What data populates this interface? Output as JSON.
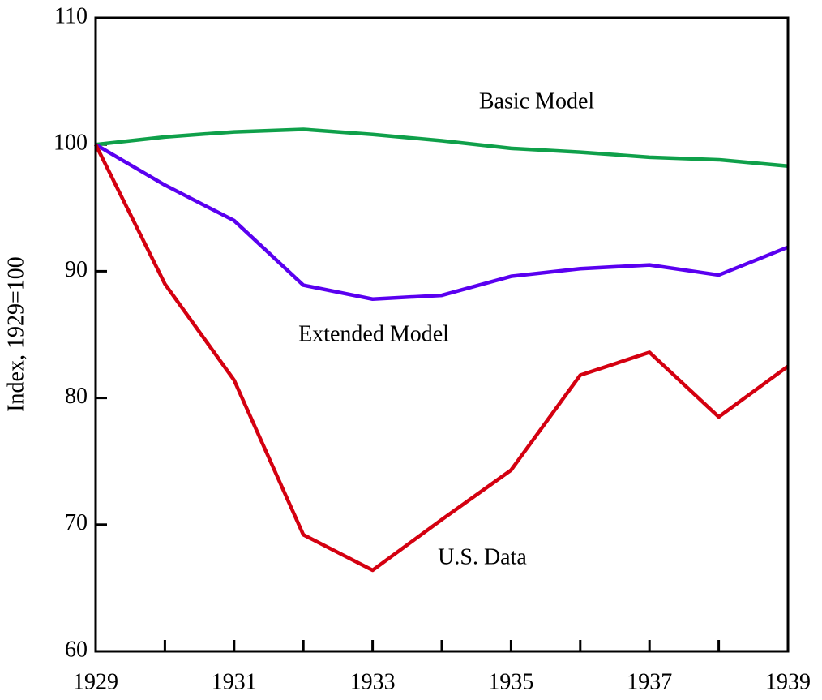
{
  "chart_data": {
    "type": "line",
    "y_label": "Index, 1929=100",
    "x": [
      1929,
      1930,
      1931,
      1932,
      1933,
      1934,
      1935,
      1936,
      1937,
      1938,
      1939
    ],
    "series": [
      {
        "name": "Basic Model",
        "color": "#0fa04a",
        "values": [
          100,
          100.6,
          101.0,
          101.2,
          100.8,
          100.3,
          99.7,
          99.4,
          99.0,
          98.8,
          98.3
        ]
      },
      {
        "name": "Extended Model",
        "color": "#5a00f0",
        "values": [
          100,
          96.8,
          94.0,
          88.9,
          87.8,
          88.1,
          89.6,
          90.2,
          90.5,
          89.7,
          91.9
        ]
      },
      {
        "name": "U.S. Data",
        "color": "#d40010",
        "values": [
          100,
          89.0,
          81.4,
          69.2,
          66.4,
          70.4,
          74.3,
          81.8,
          83.6,
          78.5,
          82.5
        ]
      }
    ],
    "xlim": [
      1929,
      1939
    ],
    "xticks": [
      1929,
      1931,
      1933,
      1935,
      1937,
      1939
    ],
    "ylim": [
      60,
      110
    ],
    "yticks": [
      60,
      70,
      80,
      90,
      100,
      110
    ]
  }
}
